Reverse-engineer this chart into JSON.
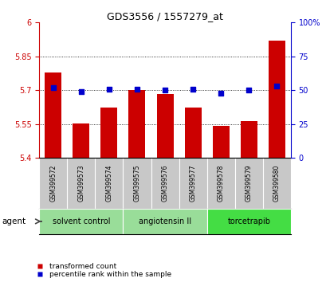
{
  "title": "GDS3556 / 1557279_at",
  "samples": [
    "GSM399572",
    "GSM399573",
    "GSM399574",
    "GSM399575",
    "GSM399576",
    "GSM399577",
    "GSM399578",
    "GSM399579",
    "GSM399580"
  ],
  "bar_values": [
    5.78,
    5.553,
    5.625,
    5.7,
    5.685,
    5.625,
    5.543,
    5.565,
    5.92
  ],
  "percentile_values": [
    52,
    49,
    51,
    51,
    50,
    51,
    48,
    50,
    53
  ],
  "ylim_left": [
    5.4,
    6.0
  ],
  "ylim_right": [
    0,
    100
  ],
  "yticks_left": [
    5.4,
    5.55,
    5.7,
    5.85,
    6.0
  ],
  "yticks_right": [
    0,
    25,
    50,
    75,
    100
  ],
  "ytick_labels_left": [
    "5.4",
    "5.55",
    "5.7",
    "5.85",
    "6"
  ],
  "ytick_labels_right": [
    "0",
    "25",
    "50",
    "75",
    "100%"
  ],
  "bar_color": "#cc0000",
  "percentile_color": "#0000cc",
  "bar_width": 0.6,
  "group_data": [
    {
      "start": 0,
      "end": 2,
      "label": "solvent control",
      "color": "#99dd99"
    },
    {
      "start": 3,
      "end": 5,
      "label": "angiotensin II",
      "color": "#99dd99"
    },
    {
      "start": 6,
      "end": 8,
      "label": "torcetrapib",
      "color": "#44dd44"
    }
  ],
  "agent_label": "agent",
  "legend_bar": "transformed count",
  "legend_percentile": "percentile rank within the sample",
  "background_plot": "#ffffff",
  "tick_area_color": "#c8c8c8",
  "spine_color_left": "#cc0000",
  "spine_color_right": "#0000cc"
}
